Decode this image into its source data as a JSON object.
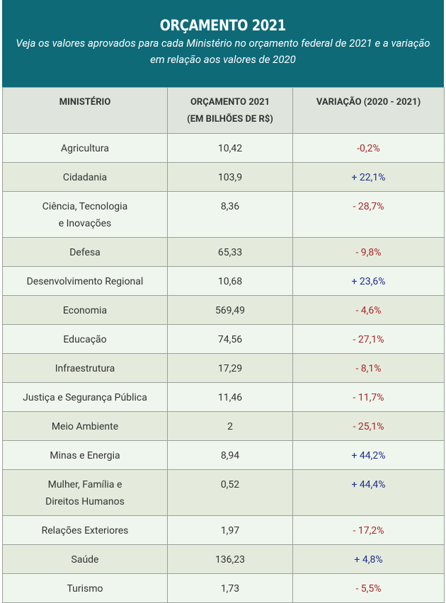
{
  "header": {
    "title": "ORÇAMENTO 2021",
    "subtitle": "Veja os valores aprovados para cada Ministério no orçamento federal de 2021 e a variação em relação aos valores de 2020"
  },
  "table": {
    "columns": [
      "MINISTÉRIO",
      "ORÇAMENTO 2021\n(EM BILHÕES DE R$)",
      "VARIAÇÃO (2020 - 2021)"
    ],
    "rows": [
      [
        "Agricultura",
        "10,42",
        "-0,2%"
      ],
      [
        "Cidadania",
        "103,9",
        "+ 22,1%"
      ],
      [
        "Ciência, Tecnologia\ne Inovações",
        "8,36",
        "- 28,7%"
      ],
      [
        "Defesa",
        "65,33",
        "- 9,8%"
      ],
      [
        "Desenvolvimento Regional",
        "10,68",
        "+ 23,6%"
      ],
      [
        "Economia",
        "569,49",
        "- 4,6%"
      ],
      [
        "Educação",
        "74,56",
        "- 27,1%"
      ],
      [
        "Infraestrutura",
        "17,29",
        "- 8,1%"
      ],
      [
        "Justiça e Segurança Pública",
        "11,46",
        "- 11,7%"
      ],
      [
        "Meio Ambiente",
        "2",
        "- 25,1%"
      ],
      [
        "Minas e Energia",
        "8,94",
        "+ 44,2%"
      ],
      [
        "Mulher, Família e\nDireitos Humanos",
        "0,52",
        "+ 44,4%"
      ],
      [
        "Relações Exteriores",
        "1,97",
        "- 17,2%"
      ],
      [
        "Saúde",
        "136,23",
        "+ 4,8%"
      ],
      [
        "Turismo",
        "1,73",
        "- 5,5%"
      ]
    ]
  }
}
